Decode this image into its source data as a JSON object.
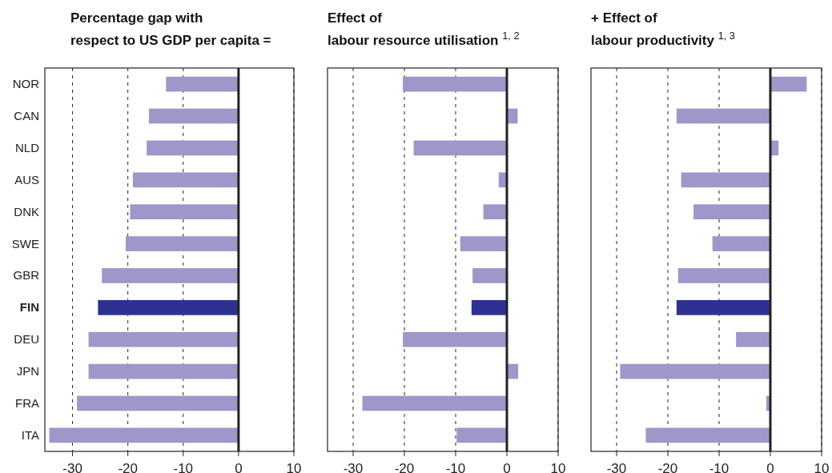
{
  "chart_data": [
    {
      "type": "bar",
      "orientation": "horizontal",
      "title": "Percentage gap with\nrespect to US GDP per capita =",
      "categories": [
        "NOR",
        "CAN",
        "NLD",
        "AUS",
        "DNK",
        "SWE",
        "GBR",
        "FIN",
        "DEU",
        "JPN",
        "FRA",
        "ITA"
      ],
      "values": [
        -13.1,
        -16.2,
        -16.6,
        -19.1,
        -19.6,
        -20.4,
        -24.7,
        -25.4,
        -27.1,
        -27.1,
        -29.2,
        -34.2
      ],
      "colors": [
        "#9e97c9",
        "#9e97c9",
        "#9e97c9",
        "#9e97c9",
        "#9e97c9",
        "#9e97c9",
        "#9e97c9",
        "#2e3192",
        "#9e97c9",
        "#9e97c9",
        "#9e97c9",
        "#9e97c9"
      ],
      "xlim": [
        -35,
        10
      ],
      "xticks": [
        -30,
        -20,
        -10,
        0,
        10
      ],
      "grid": "x",
      "ref_lines": [
        {
          "axis": "x",
          "value": 0
        }
      ]
    },
    {
      "type": "bar",
      "orientation": "horizontal",
      "title": "Effect of\nlabour resource utilisation $^{1, 2}$",
      "categories": [
        null,
        null,
        null,
        null,
        null,
        null,
        null,
        null,
        null,
        null,
        null,
        null
      ],
      "values": [
        -20.3,
        2.1,
        -18.2,
        -1.6,
        -4.6,
        -9.1,
        -6.7,
        -6.9,
        -20.3,
        2.2,
        -28.2,
        -9.8
      ],
      "colors": [
        "#9e97c9",
        "#9e97c9",
        "#9e97c9",
        "#9e97c9",
        "#9e97c9",
        "#9e97c9",
        "#9e97c9",
        "#2e3192",
        "#9e97c9",
        "#9e97c9",
        "#9e97c9",
        "#9e97c9"
      ],
      "xlim": [
        -35,
        10
      ],
      "xticks": [
        -30,
        -20,
        -10,
        0,
        10
      ],
      "grid": "x",
      "tick_labels": "x",
      "ref_lines": [
        {
          "axis": "x",
          "value": 0
        }
      ]
    },
    {
      "type": "bar",
      "orientation": "horizontal",
      "title": "+ Effect of\nlabour productivity $^{1, 3}$",
      "categories": [
        null,
        null,
        null,
        null,
        null,
        null,
        null,
        null,
        null,
        null,
        null,
        null
      ],
      "values": [
        7.1,
        -18.3,
        1.6,
        -17.4,
        -15.0,
        -11.3,
        -18.0,
        -18.3,
        -6.7,
        -29.3,
        -0.8,
        -24.3
      ],
      "colors": [
        "#9e97c9",
        "#9e97c9",
        "#9e97c9",
        "#9e97c9",
        "#9e97c9",
        "#9e97c9",
        "#9e97c9",
        "#2e3192",
        "#9e97c9",
        "#9e97c9",
        "#9e97c9",
        "#9e97c9"
      ],
      "xlim": [
        -35,
        10
      ],
      "xticks": [
        -30,
        -20,
        -10,
        0,
        10
      ],
      "grid": "x",
      "tick_labels": "x",
      "ref_lines": [
        {
          "axis": "x",
          "value": 0
        }
      ]
    }
  ]
}
